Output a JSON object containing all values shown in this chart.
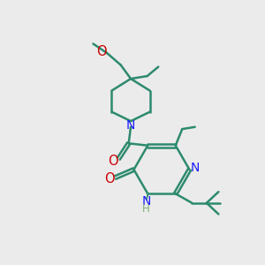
{
  "bg_color": "#ebebeb",
  "bond_color": "#2d8a6e",
  "N_color": "#1a1aff",
  "O_color": "#cc0000",
  "H_color": "#7faf7f",
  "bond_width": 1.8,
  "dbo": 0.06,
  "fig_width": 3.0,
  "fig_height": 3.0,
  "dpi": 100,
  "xlim": [
    0,
    10
  ],
  "ylim": [
    0,
    10
  ]
}
